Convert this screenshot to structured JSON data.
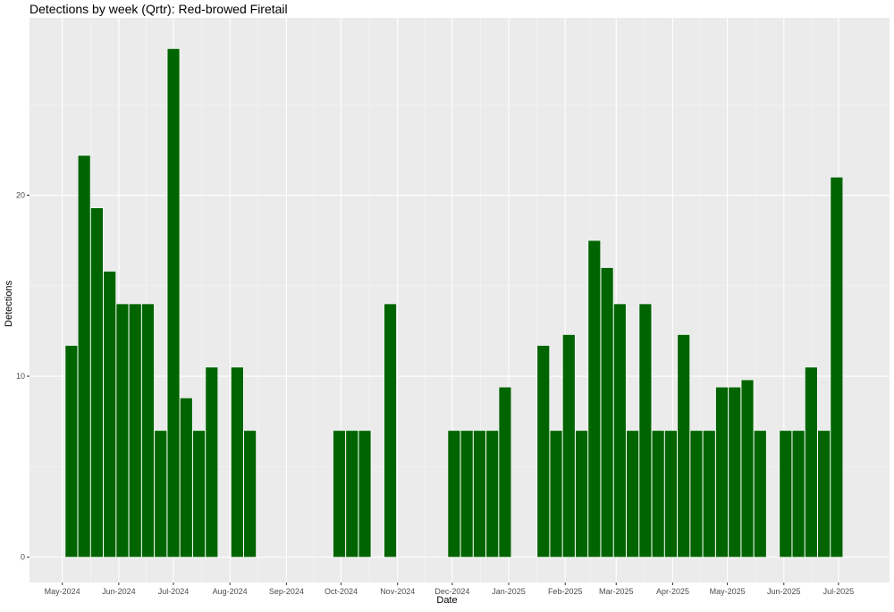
{
  "chart_data": {
    "type": "bar",
    "title": "Detections by week (Qrtr): Red-browed Firetail",
    "xlabel": "Date",
    "ylabel": "Detections",
    "ylim": [
      -1.4,
      29.8
    ],
    "xlim": [
      "2024-04-13",
      "2025-07-29"
    ],
    "yticks": [
      0,
      10,
      20
    ],
    "xticks": [
      {
        "date": "2024-05-01",
        "label": "May-2024"
      },
      {
        "date": "2024-06-01",
        "label": "Jun-2024"
      },
      {
        "date": "2024-07-01",
        "label": "Jul-2024"
      },
      {
        "date": "2024-08-01",
        "label": "Aug-2024"
      },
      {
        "date": "2024-09-01",
        "label": "Sep-2024"
      },
      {
        "date": "2024-10-01",
        "label": "Oct-2024"
      },
      {
        "date": "2024-11-01",
        "label": "Nov-2024"
      },
      {
        "date": "2024-12-01",
        "label": "Dec-2024"
      },
      {
        "date": "2025-01-01",
        "label": "Jan-2025"
      },
      {
        "date": "2025-02-01",
        "label": "Feb-2025"
      },
      {
        "date": "2025-03-01",
        "label": "Mar-2025"
      },
      {
        "date": "2025-04-01",
        "label": "Apr-2025"
      },
      {
        "date": "2025-05-01",
        "label": "May-2025"
      },
      {
        "date": "2025-06-01",
        "label": "Jun-2025"
      },
      {
        "date": "2025-07-01",
        "label": "Jul-2025"
      }
    ],
    "bar_color": "#006400",
    "panel_color": "#ebebeb",
    "grid": true,
    "x": [
      "2024-05-06",
      "2024-05-13",
      "2024-05-20",
      "2024-05-27",
      "2024-06-03",
      "2024-06-10",
      "2024-06-17",
      "2024-06-24",
      "2024-07-01",
      "2024-07-08",
      "2024-07-15",
      "2024-07-22",
      "2024-08-05",
      "2024-08-12",
      "2024-09-30",
      "2024-10-07",
      "2024-10-14",
      "2024-10-28",
      "2024-12-02",
      "2024-12-09",
      "2024-12-16",
      "2024-12-23",
      "2024-12-30",
      "2025-01-20",
      "2025-01-27",
      "2025-02-03",
      "2025-02-10",
      "2025-02-17",
      "2025-02-24",
      "2025-03-03",
      "2025-03-10",
      "2025-03-17",
      "2025-03-24",
      "2025-03-31",
      "2025-04-07",
      "2025-04-14",
      "2025-04-21",
      "2025-04-28",
      "2025-05-05",
      "2025-05-12",
      "2025-05-19",
      "2025-06-02",
      "2025-06-09",
      "2025-06-16",
      "2025-06-23",
      "2025-06-30"
    ],
    "values": [
      11.7,
      22.2,
      19.3,
      15.8,
      14.0,
      14.0,
      14.0,
      7.0,
      28.1,
      8.8,
      7.0,
      10.5,
      10.5,
      7.0,
      7.0,
      7.0,
      7.0,
      14.0,
      7.0,
      7.0,
      7.0,
      7.0,
      9.4,
      11.7,
      7.0,
      12.3,
      7.0,
      17.5,
      16.0,
      14.0,
      7.0,
      14.0,
      7.0,
      7.0,
      12.3,
      7.0,
      7.0,
      9.4,
      9.4,
      9.8,
      7.0,
      7.0,
      7.0,
      10.5,
      7.0,
      21.0
    ]
  }
}
